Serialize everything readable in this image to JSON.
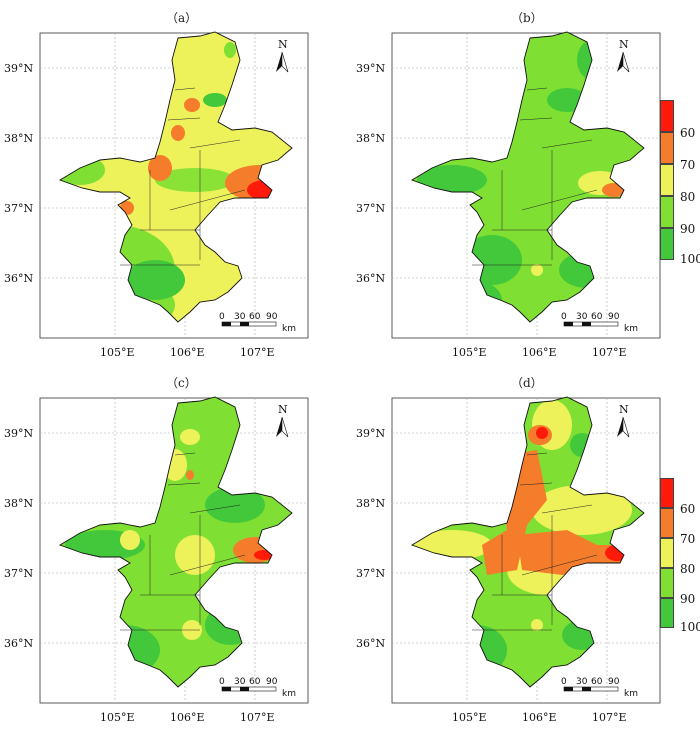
{
  "panels": [
    {
      "title": "（a）"
    },
    {
      "title": "（b）"
    },
    {
      "title": "（c）"
    },
    {
      "title": "（d）"
    }
  ],
  "axes": {
    "lat_labels": [
      "39°N",
      "38°N",
      "37°N",
      "36°N"
    ],
    "lon_labels": [
      "105°E",
      "106°E",
      "107°E"
    ]
  },
  "north_arrow": {
    "label": "N"
  },
  "scale_bar": {
    "ticks": [
      "0",
      "30",
      "60",
      "90"
    ],
    "unit": "km"
  },
  "legend": {
    "ticks": [
      "60",
      "70",
      "80",
      "90",
      "100"
    ],
    "colors": [
      "#ff1a0a",
      "#f47c2a",
      "#eef25a",
      "#7fe033",
      "#42c83a"
    ]
  }
}
